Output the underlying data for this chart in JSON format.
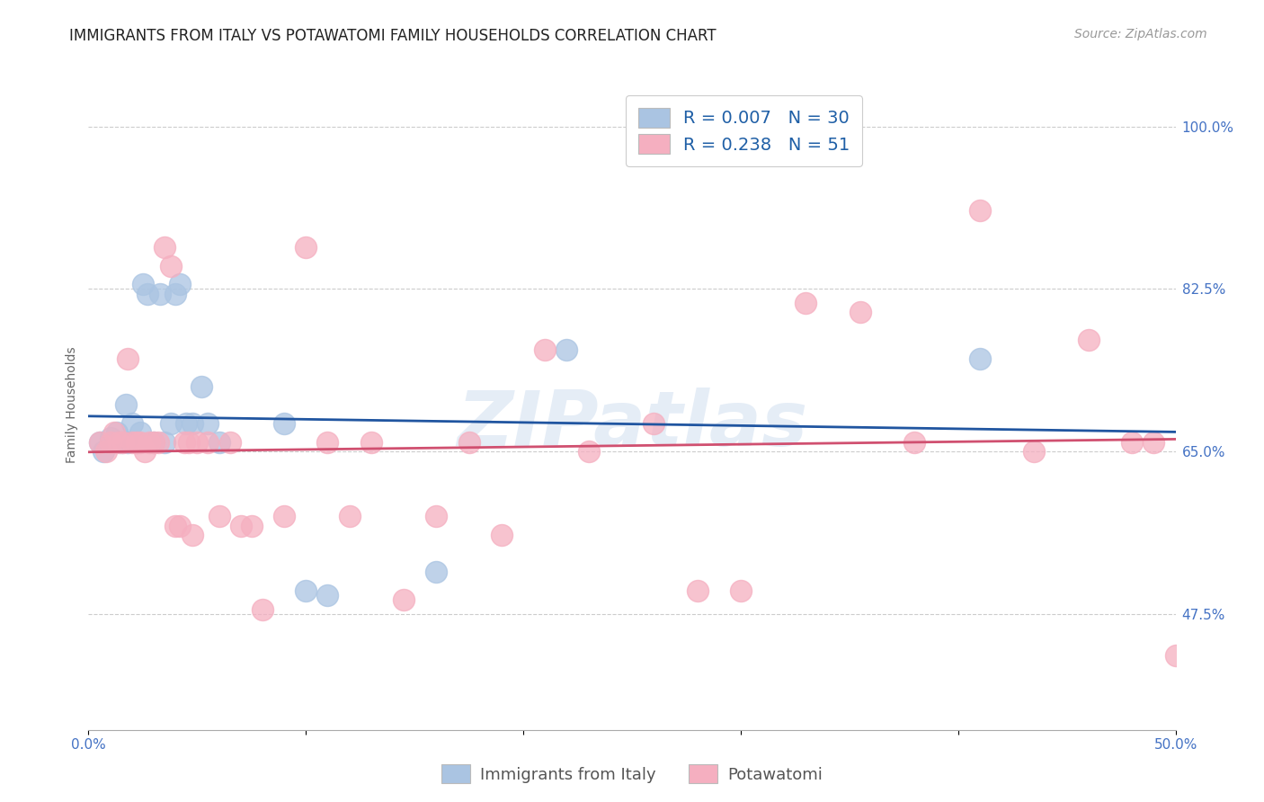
{
  "title": "IMMIGRANTS FROM ITALY VS POTAWATOMI FAMILY HOUSEHOLDS CORRELATION CHART",
  "source": "Source: ZipAtlas.com",
  "ylabel": "Family Households",
  "xlim": [
    0.0,
    0.5
  ],
  "ylim": [
    0.35,
    1.05
  ],
  "legend_italy_label": "R = 0.007   N = 30",
  "legend_potawatomi_label": "R = 0.238   N = 51",
  "italy_color": "#aac4e2",
  "potawatomi_color": "#f5afc0",
  "italy_line_color": "#2055a0",
  "potawatomi_line_color": "#d05070",
  "watermark": "ZIPatlas",
  "italy_x": [
    0.005,
    0.007,
    0.01,
    0.012,
    0.013,
    0.015,
    0.017,
    0.018,
    0.02,
    0.022,
    0.024,
    0.025,
    0.027,
    0.03,
    0.033,
    0.035,
    0.038,
    0.04,
    0.042,
    0.045,
    0.048,
    0.052,
    0.055,
    0.06,
    0.09,
    0.1,
    0.11,
    0.16,
    0.22,
    0.41
  ],
  "italy_y": [
    0.66,
    0.65,
    0.665,
    0.66,
    0.67,
    0.66,
    0.7,
    0.66,
    0.68,
    0.66,
    0.67,
    0.83,
    0.82,
    0.66,
    0.82,
    0.66,
    0.68,
    0.82,
    0.83,
    0.68,
    0.68,
    0.72,
    0.68,
    0.66,
    0.68,
    0.5,
    0.495,
    0.52,
    0.76,
    0.75
  ],
  "potawatomi_x": [
    0.005,
    0.008,
    0.01,
    0.012,
    0.014,
    0.016,
    0.018,
    0.02,
    0.022,
    0.024,
    0.026,
    0.028,
    0.03,
    0.032,
    0.035,
    0.038,
    0.04,
    0.042,
    0.044,
    0.046,
    0.048,
    0.05,
    0.055,
    0.06,
    0.065,
    0.07,
    0.075,
    0.08,
    0.09,
    0.1,
    0.11,
    0.12,
    0.13,
    0.145,
    0.16,
    0.175,
    0.19,
    0.21,
    0.23,
    0.26,
    0.28,
    0.3,
    0.33,
    0.355,
    0.38,
    0.41,
    0.435,
    0.46,
    0.48,
    0.49,
    0.5
  ],
  "potawatomi_y": [
    0.66,
    0.65,
    0.66,
    0.67,
    0.66,
    0.66,
    0.75,
    0.66,
    0.66,
    0.66,
    0.65,
    0.66,
    0.66,
    0.66,
    0.87,
    0.85,
    0.57,
    0.57,
    0.66,
    0.66,
    0.56,
    0.66,
    0.66,
    0.58,
    0.66,
    0.57,
    0.57,
    0.48,
    0.58,
    0.87,
    0.66,
    0.58,
    0.66,
    0.49,
    0.58,
    0.66,
    0.56,
    0.76,
    0.65,
    0.68,
    0.5,
    0.5,
    0.81,
    0.8,
    0.66,
    0.91,
    0.65,
    0.77,
    0.66,
    0.66,
    0.43
  ],
  "grid_color": "#cccccc",
  "grid_linestyle": "--",
  "background_color": "#ffffff",
  "title_fontsize": 12,
  "axis_label_fontsize": 10,
  "tick_fontsize": 11,
  "legend_fontsize": 14,
  "source_fontsize": 10,
  "ytick_positions": [
    0.475,
    0.65,
    0.825,
    1.0
  ],
  "ytick_labels": [
    "47.5%",
    "65.0%",
    "82.5%",
    "100.0%"
  ]
}
